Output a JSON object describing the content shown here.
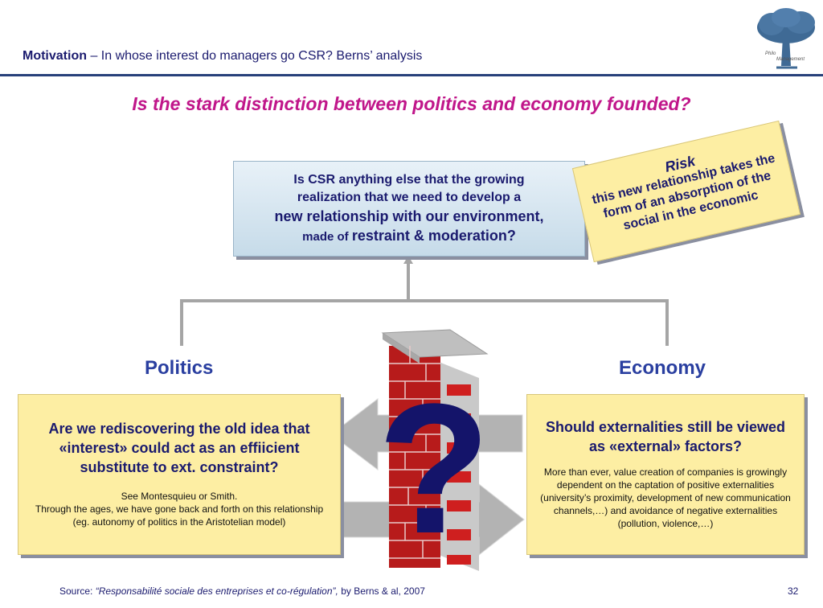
{
  "header": {
    "title_bold": "Motivation",
    "title_rest": " – In whose interest do managers go CSR? Berns’ analysis",
    "logo_text_1": "Philo",
    "logo_text_2": "Management"
  },
  "question": "Is the stark distinction between politics and economy founded?",
  "csr_box": {
    "line1": "Is CSR anything else that the growing",
    "line2": "realization that we need to develop a",
    "line3": "new relationship with our environment,",
    "line4_small": "made of ",
    "line4_big": "restraint & moderation?"
  },
  "risk": {
    "title": "Risk",
    "text": "this new relationship takes the form of an absorption of the social in the economic"
  },
  "politics": {
    "label": "Politics",
    "title": "Are we rediscovering the old idea that «interest» could act as an effiicient substitute to ext. constraint?",
    "note1": "See Montesquieu or Smith.",
    "note2": "Through the ages, we have gone back and forth on this relationship (eg. autonomy of politics in the Aristotelian model)"
  },
  "economy": {
    "label": "Economy",
    "title": "Should externalities still be viewed as «external» factors?",
    "note": "More than ever, value creation of companies is growingly dependent on the captation of positive externalities (university’s proximity, development of new communication channels,…) and avoidance of negative externalities (pollution, violence,…)"
  },
  "wall": {
    "symbol": "?"
  },
  "footer": {
    "source_prefix": "Source: ",
    "source_title": "“Responsabilité sociale des entreprises et co-régulation”,",
    "source_suffix": " by Berns & al, 2007",
    "page": "32"
  },
  "colors": {
    "accent_magenta": "#c0168a",
    "navy": "#1a1a6e",
    "label_blue": "#2a3fa0",
    "note_yellow": "#fdeea3",
    "box_blue": "#c6dbe9"
  }
}
